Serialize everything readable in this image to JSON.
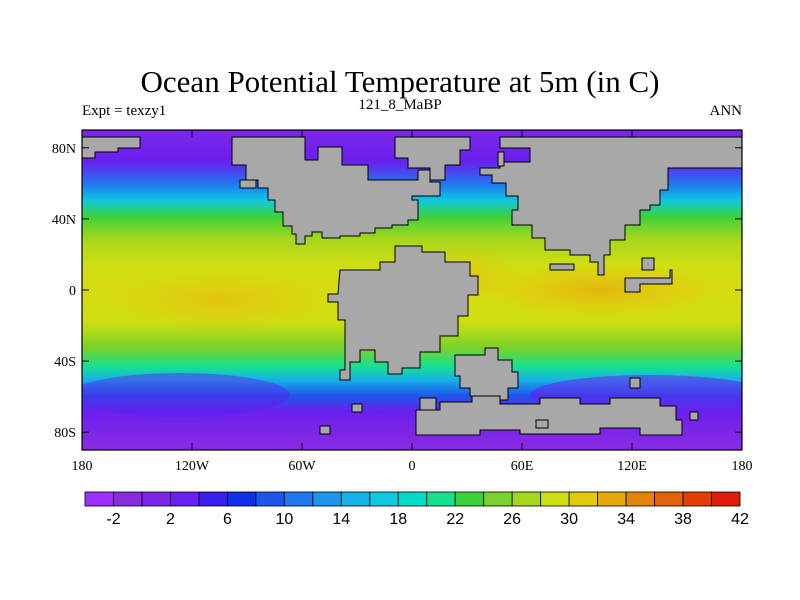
{
  "title": "Ocean Potential Temperature at 5m (in C)",
  "subtitle_left": "Expt = texzy1",
  "subtitle_center": "121_8_MaBP",
  "subtitle_right": "ANN",
  "map": {
    "land_color": "#a8a8a8",
    "lon_range": [
      -180,
      180
    ],
    "lat_range": [
      -90,
      90
    ],
    "lon_ticks": [
      {
        "value": -180,
        "label": "180"
      },
      {
        "value": -120,
        "label": "120W"
      },
      {
        "value": -60,
        "label": "60W"
      },
      {
        "value": 0,
        "label": "0"
      },
      {
        "value": 60,
        "label": "60E"
      },
      {
        "value": 120,
        "label": "120E"
      },
      {
        "value": 180,
        "label": "180"
      }
    ],
    "lat_ticks": [
      {
        "value": 80,
        "label": "80N"
      },
      {
        "value": 40,
        "label": "40N"
      },
      {
        "value": 0,
        "label": "0"
      },
      {
        "value": -40,
        "label": "40S"
      },
      {
        "value": -80,
        "label": "80S"
      }
    ]
  },
  "colorbar": {
    "colors": [
      "#9b30ff",
      "#8a2be2",
      "#7b26e8",
      "#6a20ee",
      "#3a1ef0",
      "#0f30e8",
      "#1e56ec",
      "#1f78f0",
      "#1b96ec",
      "#17b2e6",
      "#10c8e0",
      "#00dcc8",
      "#16e090",
      "#3ad23a",
      "#7ad22a",
      "#a6d61e",
      "#cede12",
      "#e2c80e",
      "#e6a80a",
      "#e48406",
      "#e26206",
      "#e04008",
      "#dc1e0a"
    ],
    "labels": [
      "-2",
      "2",
      "6",
      "10",
      "14",
      "18",
      "22",
      "26",
      "30",
      "34",
      "38",
      "42"
    ]
  }
}
